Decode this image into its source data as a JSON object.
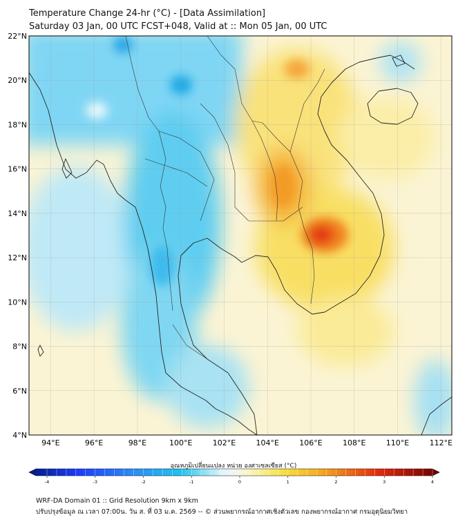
{
  "header": {
    "title": "Temperature Change 24-hr (°C) - [Data Assimilation]",
    "subtitle": "Saturday 03 Jan, 00 UTC FCST+048, Valid at :: Mon 05 Jan, 00 UTC"
  },
  "map": {
    "lat_labels": [
      "22°N",
      "20°N",
      "18°N",
      "16°N",
      "14°N",
      "12°N",
      "10°N",
      "8°N",
      "6°N",
      "4°N"
    ],
    "lon_labels": [
      "94°E",
      "96°E",
      "98°E",
      "100°E",
      "102°E",
      "104°E",
      "106°E",
      "108°E",
      "110°E",
      "112°E"
    ],
    "lat_range": [
      4,
      22
    ],
    "lon_range": [
      93,
      112.5
    ]
  },
  "colorbar": {
    "label": "อุณหภูมิเปลี่ยนแปลง หน่วย องศาเซลเซียส (°C)",
    "ticks": [
      "-4",
      "-3",
      "-2",
      "-1",
      "0",
      "1",
      "2",
      "3",
      "4"
    ],
    "min": -4,
    "max": 4,
    "colors": {
      "cold": "#1e3cff",
      "cool": "#22c3ee",
      "neutral": "#f4f4f4",
      "warm": "#f8e040",
      "hot": "#e62a0c",
      "extreme": "#6a0000"
    }
  },
  "footer": {
    "line1": "WRF-DA Domain 01 :: Grid Resolution 9km x 9km",
    "line2": "ปรับปรุงข้อมูล ณ เวลา 07:00น. วัน ส. ที่ 03 ม.ค. 2569 -- © ส่วนพยากรณ์อากาศเชิงตัวเลข กองพยากรณ์อากาศ กรมอุตุนิยมวิทยา"
  }
}
